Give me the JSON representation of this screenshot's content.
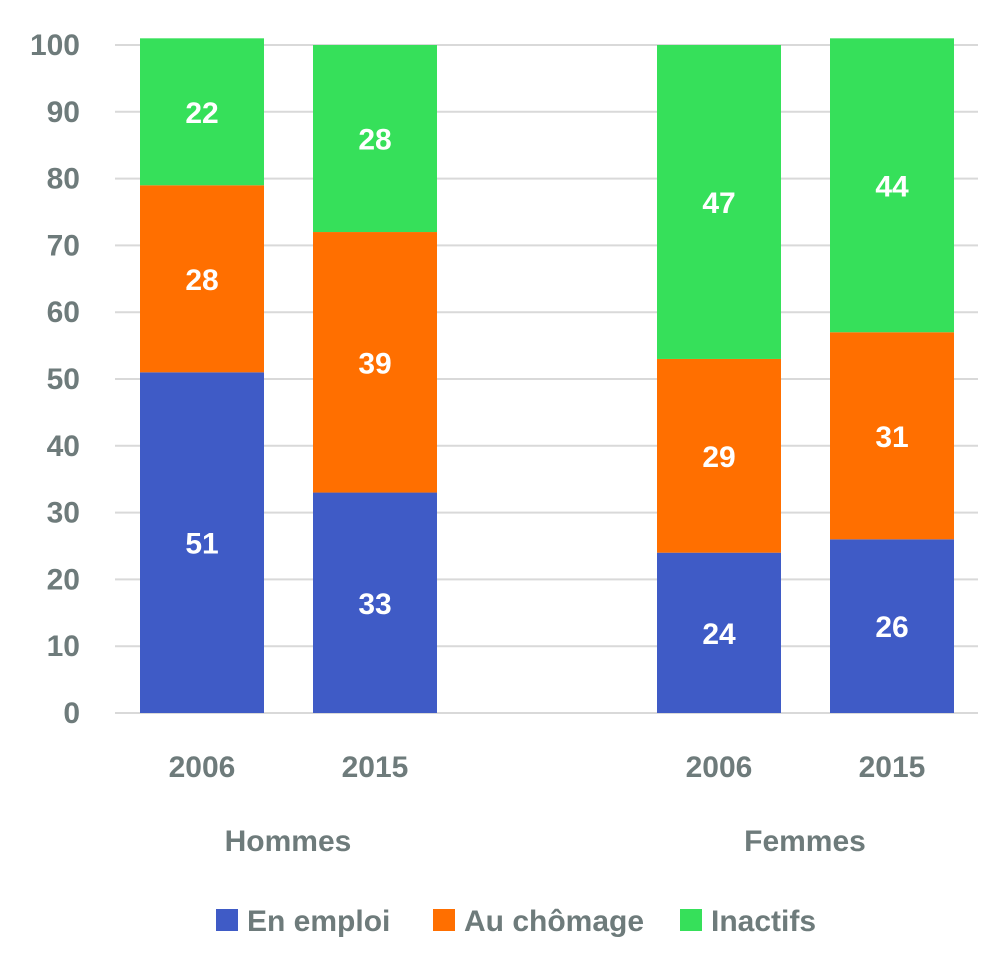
{
  "chart_data": {
    "type": "bar",
    "stacked": true,
    "title": "",
    "xlabel": "",
    "ylabel": "",
    "ylim": [
      0,
      100
    ],
    "yticks": [
      0,
      10,
      20,
      30,
      40,
      50,
      60,
      70,
      80,
      90,
      100
    ],
    "grid": true,
    "legend_position": "bottom",
    "groups": [
      {
        "label": "Hommes",
        "categories": [
          "2006",
          "2015"
        ]
      },
      {
        "label": "Femmes",
        "categories": [
          "2006",
          "2015"
        ]
      }
    ],
    "categories": [
      "2006",
      "2015",
      "2006",
      "2015"
    ],
    "series": [
      {
        "name": "En emploi",
        "color": "#3f5bc6",
        "values": [
          51,
          33,
          24,
          26
        ]
      },
      {
        "name": "Au chômage",
        "color": "#ff6f00",
        "values": [
          28,
          39,
          29,
          31
        ]
      },
      {
        "name": "Inactifs",
        "color": "#36e05a",
        "values": [
          22,
          28,
          47,
          44
        ]
      }
    ]
  }
}
